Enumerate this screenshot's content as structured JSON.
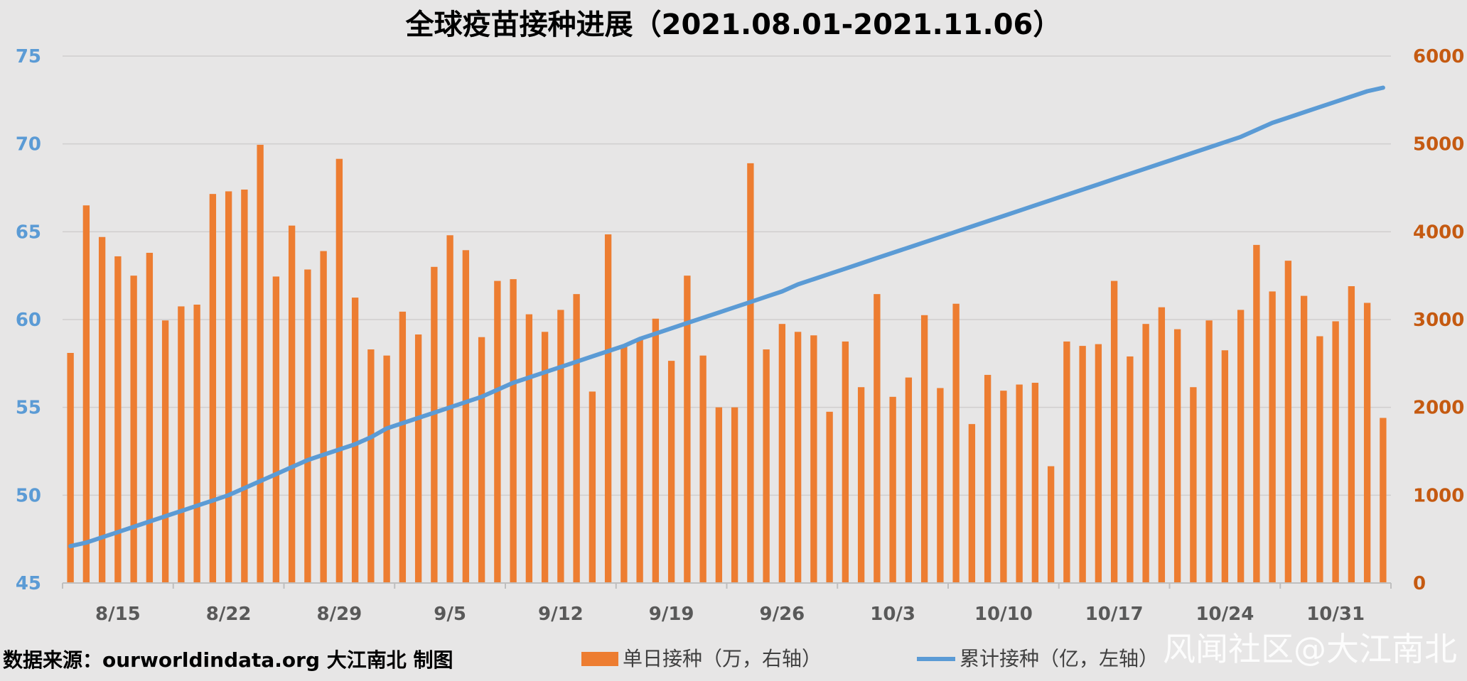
{
  "chart_data": {
    "type": "bar+line",
    "title": "全球疫苗接种进展（2021.08.01-2021.11.06）",
    "x_tick_labels": [
      "8/15",
      "8/22",
      "8/29",
      "9/5",
      "9/12",
      "9/19",
      "9/26",
      "10/3",
      "10/10",
      "10/17",
      "10/24",
      "10/31"
    ],
    "left_axis": {
      "ylim": [
        45,
        75
      ],
      "ticks": [
        45,
        50,
        55,
        60,
        65,
        70,
        75
      ]
    },
    "right_axis": {
      "ylim": [
        0,
        6000
      ],
      "ticks": [
        0,
        1000,
        2000,
        3000,
        4000,
        5000,
        6000
      ]
    },
    "series": [
      {
        "name": "单日接种（万，右轴）",
        "type": "bar",
        "axis": "right",
        "color": "#ed7d31",
        "values": [
          2620,
          4300,
          3940,
          3720,
          3500,
          3760,
          2990,
          3150,
          3170,
          4430,
          4460,
          4480,
          4990,
          3490,
          4070,
          3570,
          3780,
          4830,
          3250,
          2660,
          2590,
          3090,
          2830,
          3600,
          3960,
          3790,
          2800,
          3440,
          3460,
          3060,
          2860,
          3110,
          3290,
          2180,
          3970,
          2710,
          2780,
          3010,
          2530,
          3500,
          2590,
          2000,
          2000,
          4780,
          2660,
          2950,
          2860,
          2820,
          1950,
          2750,
          2230,
          3290,
          2120,
          2340,
          3050,
          2220,
          3180,
          1810,
          2370,
          2190,
          2260,
          2280,
          1330,
          2750,
          2700,
          2720,
          3440,
          2580,
          2950,
          3140,
          2890,
          2230,
          2990,
          2650,
          3110,
          3850,
          3320,
          3670,
          3270,
          2810,
          2980,
          3380,
          3190,
          1880
        ]
      },
      {
        "name": "累计接种（亿，左轴）",
        "type": "line",
        "axis": "left",
        "color": "#5b9bd5",
        "values": [
          47.1,
          47.3,
          47.6,
          47.9,
          48.2,
          48.5,
          48.8,
          49.1,
          49.4,
          49.7,
          50.0,
          50.4,
          50.8,
          51.2,
          51.6,
          52.0,
          52.3,
          52.6,
          52.9,
          53.3,
          53.8,
          54.1,
          54.4,
          54.7,
          55.0,
          55.3,
          55.6,
          56.0,
          56.4,
          56.7,
          57.0,
          57.3,
          57.6,
          57.9,
          58.2,
          58.5,
          58.9,
          59.2,
          59.5,
          59.8,
          60.1,
          60.4,
          60.7,
          61.0,
          61.3,
          61.6,
          62.0,
          62.3,
          62.6,
          62.9,
          63.2,
          63.5,
          63.8,
          64.1,
          64.4,
          64.7,
          65.0,
          65.3,
          65.6,
          65.9,
          66.2,
          66.5,
          66.8,
          67.1,
          67.4,
          67.7,
          68.0,
          68.3,
          68.6,
          68.9,
          69.2,
          69.5,
          69.8,
          70.1,
          70.4,
          70.8,
          71.2,
          71.5,
          71.8,
          72.1,
          72.4,
          72.7,
          73.0,
          73.2
        ]
      }
    ]
  },
  "footer": {
    "source": "数据来源：ourworldindata.org    大江南北 制图",
    "watermark": "风闻社区@大江南北"
  }
}
